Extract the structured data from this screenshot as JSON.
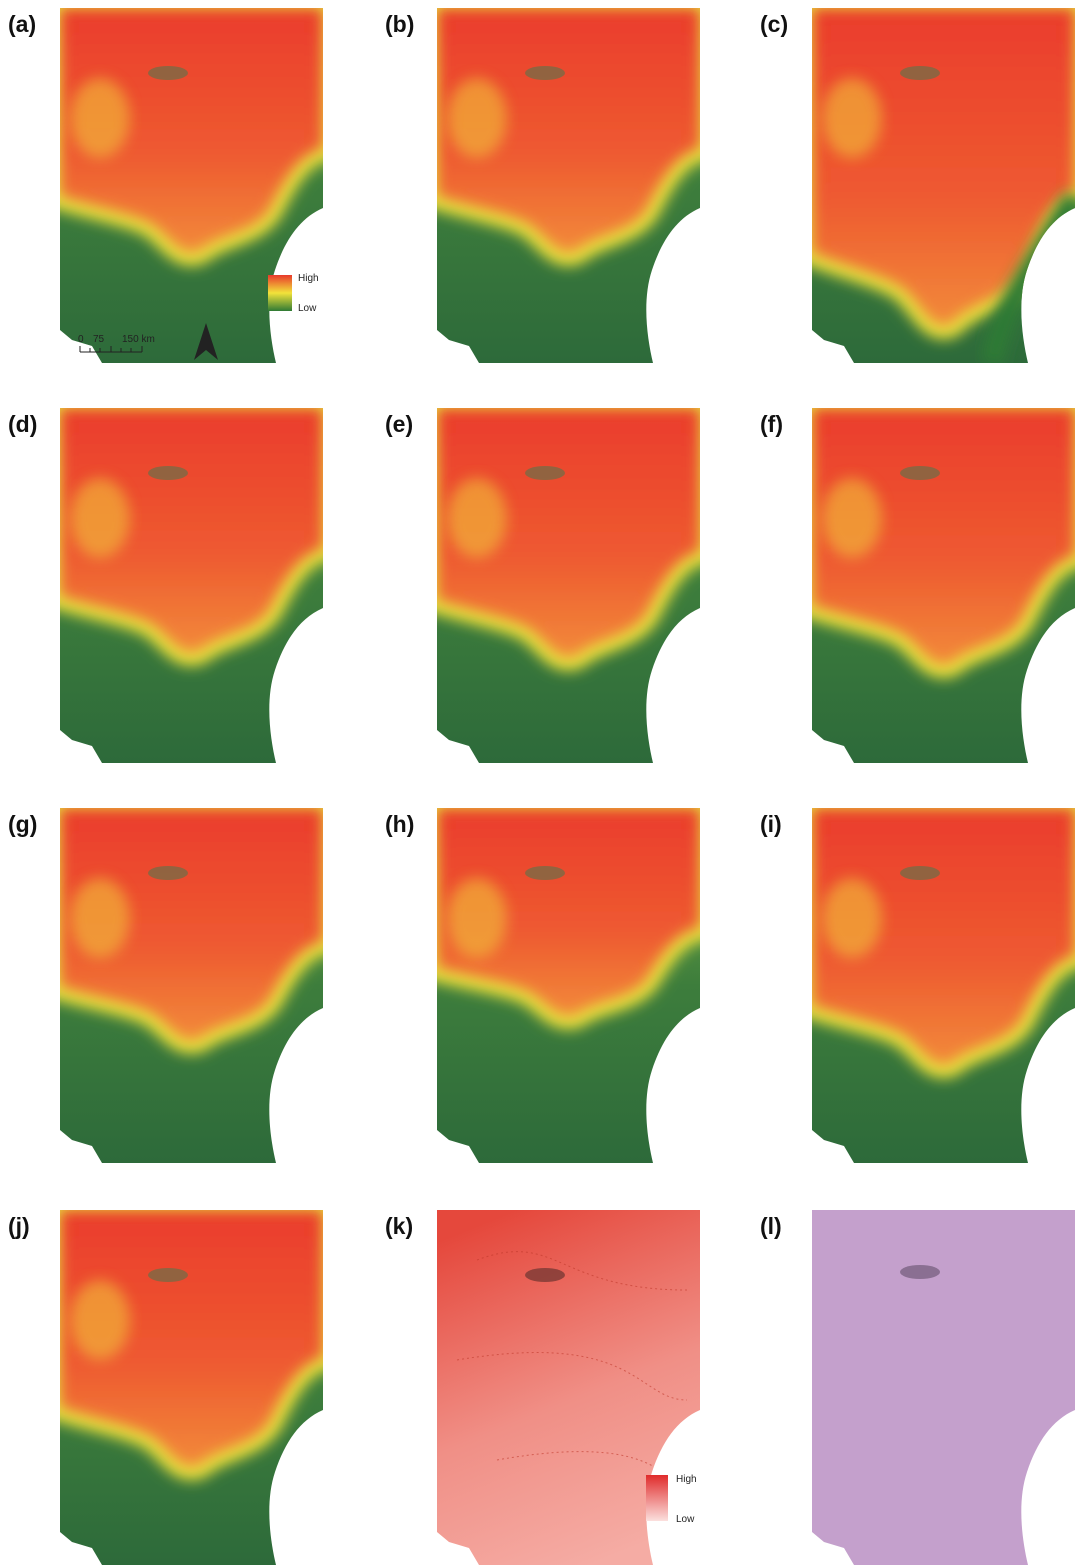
{
  "panels": [
    {
      "label": "(a)"
    },
    {
      "label": "(b)"
    },
    {
      "label": "(c)"
    },
    {
      "label": "(d)"
    },
    {
      "label": "(e)"
    },
    {
      "label": "(f)"
    },
    {
      "label": "(g)"
    },
    {
      "label": "(h)"
    },
    {
      "label": "(i)"
    },
    {
      "label": "(j)"
    },
    {
      "label": "(k)"
    },
    {
      "label": "(l)"
    }
  ],
  "legend_a": {
    "high": "High",
    "low": "Low"
  },
  "scale_bar": {
    "ticks": [
      "0",
      "75",
      "150 km"
    ]
  },
  "legend_k": {
    "high": "High",
    "low": "Low"
  }
}
